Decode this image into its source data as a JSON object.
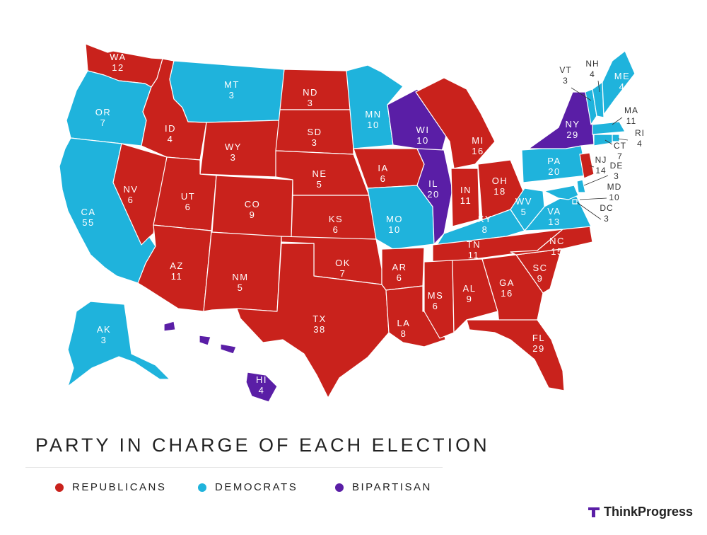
{
  "title": "PARTY IN CHARGE OF EACH ELECTION",
  "colors": {
    "R": "#c9221c",
    "D": "#1fb3dc",
    "B": "#5a1ea6"
  },
  "legend": [
    {
      "key": "R",
      "label": "REPUBLICANS"
    },
    {
      "key": "D",
      "label": "DEMOCRATS"
    },
    {
      "key": "B",
      "label": "BIPARTISAN"
    }
  ],
  "brand": {
    "name": "ThinkProgress",
    "icon": "thinkprogress-logo-icon"
  },
  "states": [
    {
      "abbr": "WA",
      "votes": "12",
      "party": "R"
    },
    {
      "abbr": "OR",
      "votes": "7",
      "party": "D"
    },
    {
      "abbr": "CA",
      "votes": "55",
      "party": "D"
    },
    {
      "abbr": "ID",
      "votes": "4",
      "party": "R"
    },
    {
      "abbr": "NV",
      "votes": "6",
      "party": "R"
    },
    {
      "abbr": "MT",
      "votes": "3",
      "party": "D"
    },
    {
      "abbr": "WY",
      "votes": "3",
      "party": "R"
    },
    {
      "abbr": "UT",
      "votes": "6",
      "party": "R"
    },
    {
      "abbr": "AZ",
      "votes": "11",
      "party": "R"
    },
    {
      "abbr": "CO",
      "votes": "9",
      "party": "R"
    },
    {
      "abbr": "NM",
      "votes": "5",
      "party": "R"
    },
    {
      "abbr": "ND",
      "votes": "3",
      "party": "R"
    },
    {
      "abbr": "SD",
      "votes": "3",
      "party": "R"
    },
    {
      "abbr": "NE",
      "votes": "5",
      "party": "R"
    },
    {
      "abbr": "KS",
      "votes": "6",
      "party": "R"
    },
    {
      "abbr": "OK",
      "votes": "7",
      "party": "R"
    },
    {
      "abbr": "TX",
      "votes": "38",
      "party": "R"
    },
    {
      "abbr": "MN",
      "votes": "10",
      "party": "D"
    },
    {
      "abbr": "IA",
      "votes": "6",
      "party": "R"
    },
    {
      "abbr": "MO",
      "votes": "10",
      "party": "D"
    },
    {
      "abbr": "AR",
      "votes": "6",
      "party": "R"
    },
    {
      "abbr": "LA",
      "votes": "8",
      "party": "R"
    },
    {
      "abbr": "WI",
      "votes": "10",
      "party": "B"
    },
    {
      "abbr": "IL",
      "votes": "20",
      "party": "B"
    },
    {
      "abbr": "MI",
      "votes": "16",
      "party": "R"
    },
    {
      "abbr": "IN",
      "votes": "11",
      "party": "R"
    },
    {
      "abbr": "OH",
      "votes": "18",
      "party": "R"
    },
    {
      "abbr": "KY",
      "votes": "8",
      "party": "D"
    },
    {
      "abbr": "TN",
      "votes": "11",
      "party": "R"
    },
    {
      "abbr": "MS",
      "votes": "6",
      "party": "R"
    },
    {
      "abbr": "AL",
      "votes": "9",
      "party": "R"
    },
    {
      "abbr": "GA",
      "votes": "16",
      "party": "R"
    },
    {
      "abbr": "FL",
      "votes": "29",
      "party": "R"
    },
    {
      "abbr": "SC",
      "votes": "9",
      "party": "R"
    },
    {
      "abbr": "NC",
      "votes": "15",
      "party": "R"
    },
    {
      "abbr": "VA",
      "votes": "13",
      "party": "D"
    },
    {
      "abbr": "WV",
      "votes": "5",
      "party": "D"
    },
    {
      "abbr": "PA",
      "votes": "20",
      "party": "D"
    },
    {
      "abbr": "NY",
      "votes": "29",
      "party": "B"
    },
    {
      "abbr": "VT",
      "votes": "3",
      "party": "D"
    },
    {
      "abbr": "NH",
      "votes": "4",
      "party": "D"
    },
    {
      "abbr": "ME",
      "votes": "4",
      "party": "D"
    },
    {
      "abbr": "MA",
      "votes": "11",
      "party": "D"
    },
    {
      "abbr": "RI",
      "votes": "4",
      "party": "D"
    },
    {
      "abbr": "CT",
      "votes": "7",
      "party": "D"
    },
    {
      "abbr": "NJ",
      "votes": "14",
      "party": "R"
    },
    {
      "abbr": "DE",
      "votes": "3",
      "party": "D"
    },
    {
      "abbr": "MD",
      "votes": "10",
      "party": "D"
    },
    {
      "abbr": "DC",
      "votes": "3",
      "party": "D"
    },
    {
      "abbr": "AK",
      "votes": "3",
      "party": "D"
    },
    {
      "abbr": "HI",
      "votes": "4",
      "party": "B"
    }
  ]
}
